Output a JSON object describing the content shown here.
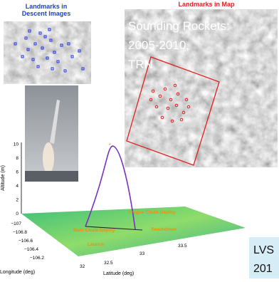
{
  "descent_panel": {
    "title": "Landmarks in Descent Images"
  },
  "map_panel": {
    "title": "Landmarks in Map",
    "overlay": "Sounding Rockets: 2005-2010, TRN Flights"
  },
  "trajectory_plot": {
    "z_label": "Altitude (m)",
    "z_ticks": [
      "0",
      "2",
      "4",
      "6",
      "8",
      "10"
    ],
    "x_label": "Longitude (deg)",
    "x_ticks": [
      "−107",
      "−106.8",
      "−106.6",
      "−106.4",
      "−106.2"
    ],
    "y_label": "Latitude (deg)",
    "y_ticks": [
      "32",
      "32.5",
      "33",
      "33.5"
    ],
    "annotations": [
      "Drogue Chute Deploy",
      "Main Chute Deploy",
      "Touchdown",
      "Launch"
    ]
  },
  "corner_box": {
    "lines": [
      "LVS",
      "201"
    ]
  }
}
